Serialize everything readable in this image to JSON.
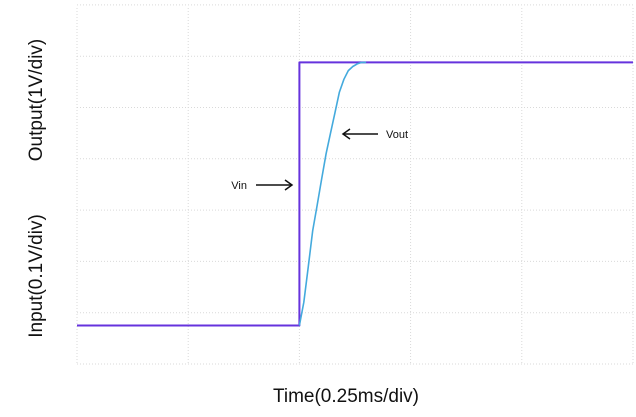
{
  "chart_data": {
    "type": "line",
    "xlabel": "Time(0.25ms/div)",
    "ylabel_upper": "Output(1V/div)",
    "ylabel_lower": "Input(0.1V/div)",
    "grid": true,
    "x_divisions": 5,
    "y_divisions": 7,
    "xlim": [
      0,
      1.25
    ],
    "series": [
      {
        "name": "Vin",
        "color": "#6633dd",
        "x": [
          0,
          0.5,
          0.5,
          1.25
        ],
        "y": [
          0.75,
          0.75,
          5.88,
          5.88
        ]
      },
      {
        "name": "Vout",
        "color": "#44aadd",
        "x": [
          0.5,
          0.51,
          0.52,
          0.53,
          0.54,
          0.55,
          0.56,
          0.57,
          0.58,
          0.59,
          0.6,
          0.61,
          0.62,
          0.63,
          0.64,
          0.65
        ],
        "y": [
          0.75,
          1.2,
          1.9,
          2.6,
          3.1,
          3.6,
          4.1,
          4.5,
          4.9,
          5.3,
          5.55,
          5.72,
          5.8,
          5.85,
          5.88,
          5.88
        ]
      }
    ],
    "annotations": [
      {
        "label": "Vin",
        "series": "Vin"
      },
      {
        "label": "Vout",
        "series": "Vout"
      }
    ]
  },
  "colors": {
    "grid": "#d9d9d9",
    "vin": "#6633dd",
    "vout": "#44aadd",
    "arrow": "#111111"
  }
}
